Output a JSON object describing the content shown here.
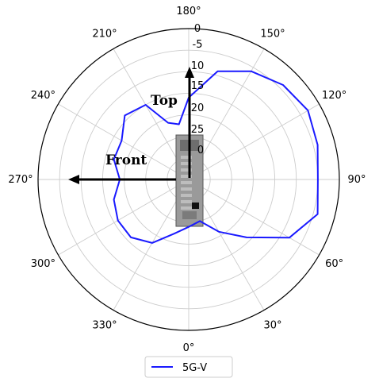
{
  "chart_data": {
    "type": "line",
    "projection": "polar",
    "theta_direction": "counter-clockwise",
    "theta_zero": "bottom",
    "angle_labels": [
      "0°",
      "30°",
      "60°",
      "90°",
      "120°",
      "150°",
      "180°",
      "210°",
      "240°",
      "270°",
      "300°",
      "330°"
    ],
    "radial_tick_labels": [
      "0",
      "-5",
      "10",
      "15",
      "20",
      "25",
      "0"
    ],
    "r_inverted": true,
    "r_range": [
      0,
      35
    ],
    "grid": true,
    "legend_position": "bottom-center",
    "annotations": {
      "top": "Top",
      "front": "Front"
    },
    "series": [
      {
        "name": "5G-V",
        "color": "#1a1aff",
        "theta": [
          0,
          15,
          30,
          45,
          60,
          75,
          90,
          105,
          120,
          135,
          150,
          165,
          180,
          190,
          200,
          210,
          225,
          240,
          255,
          270,
          285,
          300,
          315,
          330,
          345
        ],
        "r": [
          24,
          25,
          21,
          16,
          8,
          4,
          5,
          4,
          3,
          4,
          6,
          9,
          16,
          22,
          21,
          15,
          14,
          17,
          17,
          19,
          17,
          16,
          16,
          18,
          22
        ]
      }
    ]
  },
  "colors": {
    "series": "#1a1aff",
    "grid": "#cccccc",
    "device": "#8a8a8a"
  }
}
